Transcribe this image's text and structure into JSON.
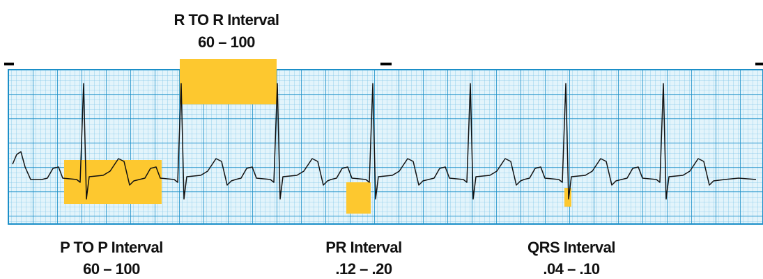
{
  "labels": {
    "r_to_r": {
      "title": "R TO R Interval",
      "range": "60 – 100"
    },
    "p_to_p": {
      "title": "P TO P Interval",
      "range": "60 – 100"
    },
    "pr": {
      "title": "PR Interval",
      "range": ".12 – .20"
    },
    "qrs": {
      "title": "QRS Interval",
      "range": ".04 – .10"
    }
  }
}
